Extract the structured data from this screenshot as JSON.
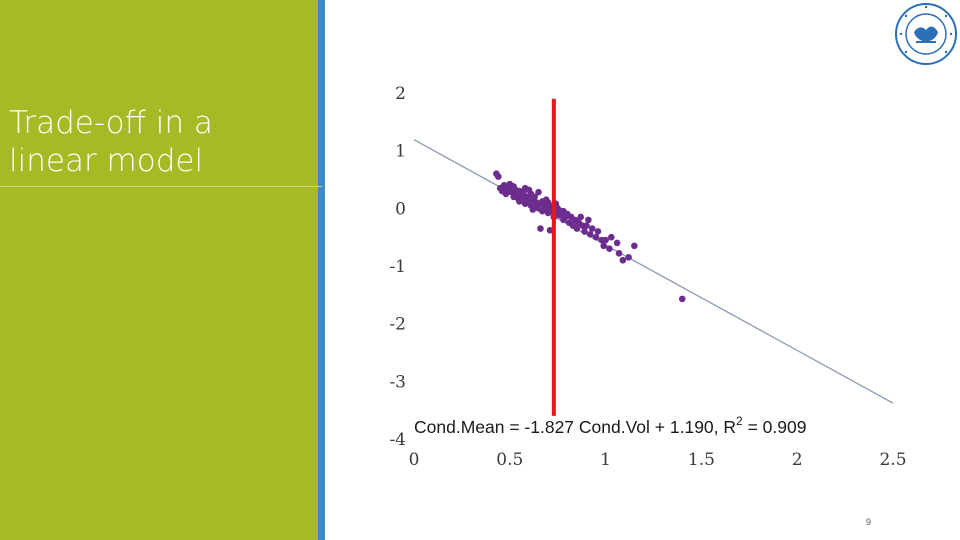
{
  "slide": {
    "title": "Trade-off in a linear model",
    "page_number": "9",
    "colors": {
      "panel": "#a7b924",
      "accent": "#3b8bc7",
      "marker_line": "#e0191b",
      "points": "#6d2d8f",
      "fit_line": "#8a9ab0",
      "logo": "#2a70b8"
    }
  },
  "logo": {
    "icon": "imf-seal-icon",
    "text": "INTERNATIONAL MONETARY FUND"
  },
  "chart_data": {
    "type": "scatter",
    "title": "",
    "xlabel": "",
    "ylabel": "",
    "xlim": [
      0,
      2.5
    ],
    "ylim": [
      -4,
      2
    ],
    "xticks": [
      0,
      0.5,
      1,
      1.5,
      2,
      2.5
    ],
    "xtick_labels": [
      "0",
      "0.5",
      "1",
      "1.5",
      "2",
      "2.5"
    ],
    "yticks": [
      2,
      1,
      0,
      -1,
      -2,
      -3,
      -4
    ],
    "ytick_labels": [
      "2",
      "1",
      "0",
      "-1",
      "-2",
      "-3",
      "-4"
    ],
    "equation": {
      "prefix": "Cond.Mean = -1.827 Cond.Vol + 1.190, R",
      "sup": "2",
      "suffix": " = 0.909"
    },
    "fit": {
      "slope": -1.827,
      "intercept": 1.19,
      "x_range": [
        0,
        2.5
      ]
    },
    "vertical_marker_x": 0.73,
    "vertical_marker_y": [
      -3.6,
      1.9
    ],
    "points": [
      [
        0.43,
        0.6
      ],
      [
        0.44,
        0.55
      ],
      [
        0.45,
        0.35
      ],
      [
        0.46,
        0.3
      ],
      [
        0.47,
        0.4
      ],
      [
        0.48,
        0.32
      ],
      [
        0.49,
        0.36
      ],
      [
        0.5,
        0.3
      ],
      [
        0.51,
        0.28
      ],
      [
        0.52,
        0.38
      ],
      [
        0.52,
        0.2
      ],
      [
        0.53,
        0.25
      ],
      [
        0.54,
        0.18
      ],
      [
        0.55,
        0.3
      ],
      [
        0.55,
        0.12
      ],
      [
        0.56,
        0.22
      ],
      [
        0.57,
        0.15
      ],
      [
        0.58,
        0.35
      ],
      [
        0.58,
        0.08
      ],
      [
        0.59,
        0.2
      ],
      [
        0.6,
        0.1
      ],
      [
        0.61,
        0.25
      ],
      [
        0.61,
        0.05
      ],
      [
        0.62,
        0.15
      ],
      [
        0.63,
        0.2
      ],
      [
        0.63,
        0.02
      ],
      [
        0.64,
        0.1
      ],
      [
        0.65,
        0.28
      ],
      [
        0.65,
        0.0
      ],
      [
        0.66,
        0.08
      ],
      [
        0.67,
        0.12
      ],
      [
        0.67,
        -0.05
      ],
      [
        0.68,
        0.05
      ],
      [
        0.69,
        0.0
      ],
      [
        0.7,
        0.1
      ],
      [
        0.7,
        -0.08
      ],
      [
        0.71,
        0.02
      ],
      [
        0.72,
        -0.05
      ],
      [
        0.73,
        0.05
      ],
      [
        0.73,
        -0.15
      ],
      [
        0.74,
        -0.1
      ],
      [
        0.75,
        0.0
      ],
      [
        0.76,
        -0.12
      ],
      [
        0.77,
        -0.05
      ],
      [
        0.78,
        -0.2
      ],
      [
        0.79,
        -0.15
      ],
      [
        0.8,
        -0.1
      ],
      [
        0.81,
        -0.25
      ],
      [
        0.82,
        -0.15
      ],
      [
        0.83,
        -0.3
      ],
      [
        0.84,
        -0.2
      ],
      [
        0.85,
        -0.35
      ],
      [
        0.86,
        -0.25
      ],
      [
        0.87,
        -0.15
      ],
      [
        0.88,
        -0.3
      ],
      [
        0.89,
        -0.4
      ],
      [
        0.9,
        -0.3
      ],
      [
        0.91,
        -0.2
      ],
      [
        0.92,
        -0.45
      ],
      [
        0.93,
        -0.35
      ],
      [
        0.95,
        -0.5
      ],
      [
        0.96,
        -0.4
      ],
      [
        0.98,
        -0.55
      ],
      [
        0.99,
        -0.65
      ],
      [
        1.0,
        -0.55
      ],
      [
        1.02,
        -0.7
      ],
      [
        1.03,
        -0.5
      ],
      [
        1.06,
        -0.6
      ],
      [
        1.07,
        -0.78
      ],
      [
        1.09,
        -0.9
      ],
      [
        1.12,
        -0.85
      ],
      [
        1.15,
        -0.65
      ],
      [
        0.48,
        0.25
      ],
      [
        0.5,
        0.42
      ],
      [
        0.57,
        0.28
      ],
      [
        0.6,
        0.32
      ],
      [
        0.66,
        -0.35
      ],
      [
        0.71,
        -0.38
      ],
      [
        0.53,
        0.32
      ],
      [
        0.62,
        -0.02
      ],
      [
        0.69,
        0.15
      ],
      [
        0.74,
        0.08
      ],
      [
        0.78,
        -0.05
      ],
      [
        1.4,
        -1.57
      ]
    ]
  }
}
